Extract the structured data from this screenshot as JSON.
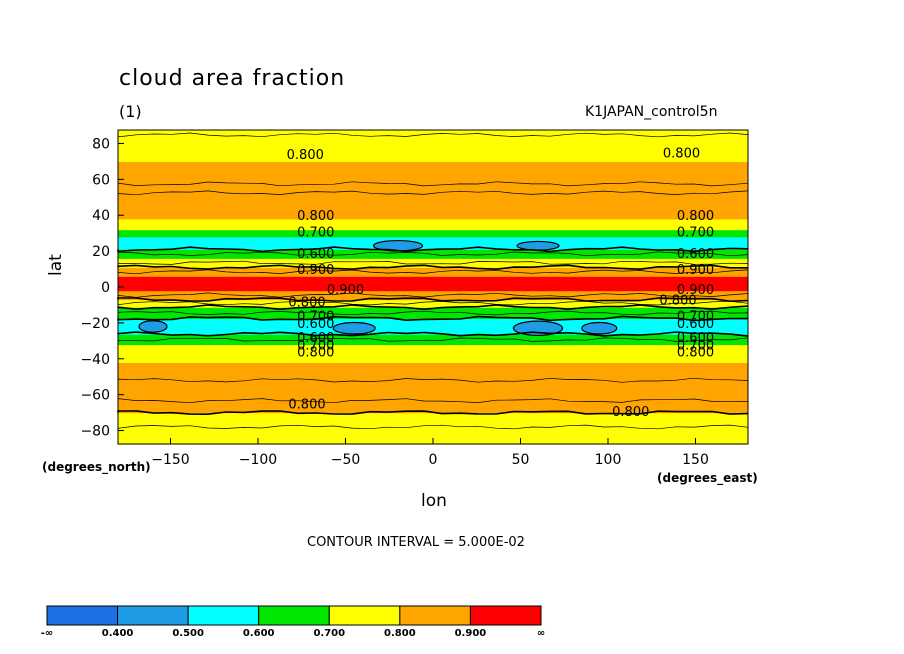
{
  "chart_data": {
    "type": "contour",
    "title": "cloud area fraction",
    "subtitle": "(1)",
    "dataset": "K1JAPAN_control5n",
    "xlabel": "lon",
    "ylabel": "lat",
    "x_units": "(degrees_east)",
    "y_units": "(degrees_north)",
    "xlim": [
      -180,
      180
    ],
    "ylim": [
      -87.5,
      87.5
    ],
    "x_ticks": [
      -150,
      -100,
      -50,
      0,
      50,
      100,
      150
    ],
    "y_ticks": [
      -80,
      -60,
      -40,
      -20,
      0,
      20,
      40,
      60,
      80
    ],
    "contour_interval_text": "CONTOUR INTERVAL = 5.000E-02",
    "zonal_profile": {
      "lat": [
        -87.5,
        -84,
        -80,
        -76,
        -72,
        -69,
        -66,
        -62,
        -58,
        -54,
        -50,
        -46,
        -42,
        -38,
        -35,
        -32,
        -30,
        -28,
        -25,
        -22,
        -20,
        -18,
        -16,
        -13,
        -10,
        -8,
        -6,
        -4,
        -2,
        0,
        2,
        4,
        6,
        8,
        10,
        12,
        14,
        16,
        18,
        20,
        22,
        24,
        26,
        28,
        30,
        32,
        34,
        36,
        38,
        40,
        42,
        46,
        50,
        55,
        60,
        65,
        70,
        74,
        78,
        82,
        87.5
      ],
      "value": [
        0.74,
        0.72,
        0.74,
        0.76,
        0.79,
        0.805,
        0.83,
        0.86,
        0.87,
        0.86,
        0.84,
        0.82,
        0.8,
        0.79,
        0.75,
        0.7,
        0.66,
        0.63,
        0.58,
        0.55,
        0.56,
        0.59,
        0.63,
        0.67,
        0.72,
        0.78,
        0.82,
        0.86,
        0.9,
        0.94,
        0.95,
        0.93,
        0.9,
        0.86,
        0.82,
        0.78,
        0.74,
        0.7,
        0.66,
        0.62,
        0.58,
        0.55,
        0.56,
        0.6,
        0.65,
        0.7,
        0.75,
        0.79,
        0.8,
        0.81,
        0.8,
        0.82,
        0.84,
        0.86,
        0.84,
        0.82,
        0.8,
        0.795,
        0.78,
        0.76,
        0.74
      ]
    },
    "contour_labels": [
      {
        "text": "0.800",
        "lon": -73,
        "lat": 74
      },
      {
        "text": "0.800",
        "lon": 142,
        "lat": 75
      },
      {
        "text": "0.800",
        "lon": -67,
        "lat": 40
      },
      {
        "text": "0.800",
        "lon": 150,
        "lat": 40
      },
      {
        "text": "0.700",
        "lon": -67,
        "lat": 31
      },
      {
        "text": "0.700",
        "lon": 150,
        "lat": 31
      },
      {
        "text": "0.600",
        "lon": -67,
        "lat": 19
      },
      {
        "text": "0.600",
        "lon": 150,
        "lat": 19
      },
      {
        "text": "0.900",
        "lon": -67,
        "lat": 10
      },
      {
        "text": "0.900",
        "lon": 150,
        "lat": 10
      },
      {
        "text": "0.900",
        "lon": -50,
        "lat": -1
      },
      {
        "text": "0.900",
        "lon": 150,
        "lat": -1
      },
      {
        "text": "0.800",
        "lon": -72,
        "lat": -8
      },
      {
        "text": "0.800",
        "lon": 140,
        "lat": -7
      },
      {
        "text": "0.700",
        "lon": -67,
        "lat": -16
      },
      {
        "text": "0.700",
        "lon": 150,
        "lat": -16
      },
      {
        "text": "0.600",
        "lon": -67,
        "lat": -20
      },
      {
        "text": "0.600",
        "lon": 150,
        "lat": -20
      },
      {
        "text": "0.600",
        "lon": -67,
        "lat": -28
      },
      {
        "text": "0.600",
        "lon": 150,
        "lat": -28
      },
      {
        "text": "0.700",
        "lon": -67,
        "lat": -32
      },
      {
        "text": "0.700",
        "lon": 150,
        "lat": -32
      },
      {
        "text": "0.800",
        "lon": -67,
        "lat": -36
      },
      {
        "text": "0.800",
        "lon": 150,
        "lat": -36
      },
      {
        "text": "0.800",
        "lon": -72,
        "lat": -65
      },
      {
        "text": "0.800",
        "lon": 113,
        "lat": -69
      }
    ],
    "colorbar": {
      "boundaries": [
        "-∞",
        "0.400",
        "0.500",
        "0.600",
        "0.700",
        "0.800",
        "0.900",
        "∞"
      ],
      "colors": [
        "#1e6ee6",
        "#1e9ce6",
        "#00ffff",
        "#00e600",
        "#ffff00",
        "#ffa500",
        "#ff0000"
      ]
    },
    "colors": {
      "below_0.400": "#1e6ee6",
      "0.400_0.500": "#1e9ce6",
      "0.500_0.600": "#00ffff",
      "0.600_0.700": "#00e600",
      "0.700_0.800": "#ffff00",
      "0.800_0.900": "#ffa500",
      "above_0.900": "#ff0000"
    }
  }
}
